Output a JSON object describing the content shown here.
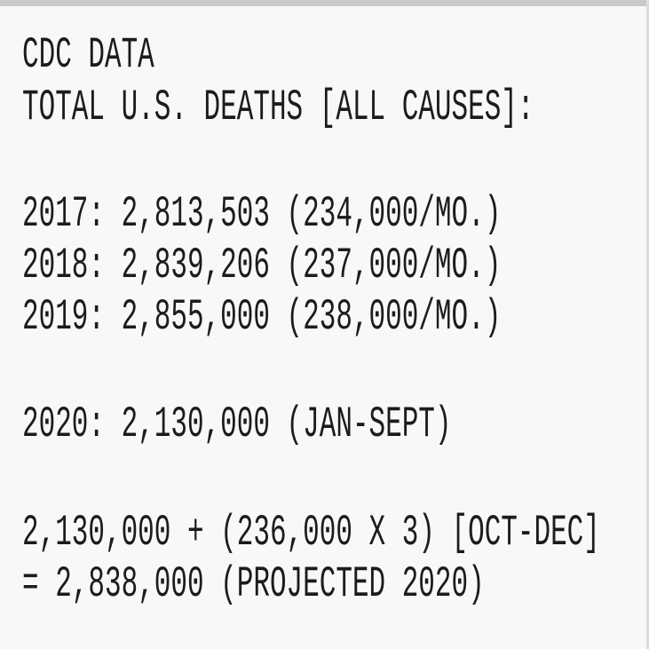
{
  "header": [
    "CDC DATA",
    "TOTAL U.S. DEATHS [ALL CAUSES]:"
  ],
  "years": [
    "2017: 2,813,503 (234,000/MO.)",
    "2018: 2,839,206 (237,000/MO.)",
    "2019: 2,855,000 (238,000/MO.)"
  ],
  "partial": "2020: 2,130,000 (JAN-SEPT)",
  "projection": [
    "2,130,000 + (236,000 X 3) [OCT-DEC]",
    "= 2,838,000 (PROJECTED 2020)"
  ]
}
